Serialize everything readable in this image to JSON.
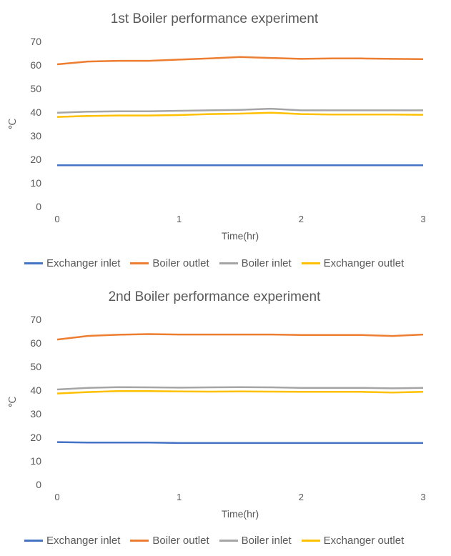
{
  "chart_data": [
    {
      "type": "line",
      "title": "1st Boiler performance experiment",
      "xlabel": "Time(hr)",
      "ylabel": "℃",
      "xlim": [
        0,
        3
      ],
      "ylim": [
        0,
        70
      ],
      "xticks": [
        "0",
        "1",
        "2",
        "3"
      ],
      "yticks": [
        "0",
        "10",
        "20",
        "30",
        "40",
        "50",
        "60",
        "70"
      ],
      "grid": false,
      "legend_position": "bottom",
      "x": [
        0,
        0.25,
        0.5,
        0.75,
        1.0,
        1.25,
        1.5,
        1.75,
        2.0,
        2.25,
        2.5,
        2.75,
        3.0
      ],
      "series": [
        {
          "name": "Exchanger inlet",
          "color": "#4472C4",
          "values": [
            17.5,
            17.5,
            17.5,
            17.5,
            17.5,
            17.5,
            17.5,
            17.5,
            17.5,
            17.5,
            17.5,
            17.5,
            17.5
          ]
        },
        {
          "name": "Boiler outlet",
          "color": "#ED7D31",
          "values": [
            60.3,
            61.5,
            61.8,
            61.8,
            62.3,
            62.8,
            63.4,
            63.0,
            62.6,
            62.8,
            62.8,
            62.6,
            62.5
          ]
        },
        {
          "name": "Boiler inlet",
          "color": "#A5A5A5",
          "values": [
            39.8,
            40.2,
            40.4,
            40.4,
            40.6,
            40.8,
            41.0,
            41.5,
            40.8,
            40.8,
            40.8,
            40.8,
            40.8
          ]
        },
        {
          "name": "Exchanger outlet",
          "color": "#FFC000",
          "values": [
            38.0,
            38.4,
            38.6,
            38.6,
            38.8,
            39.2,
            39.4,
            39.8,
            39.2,
            39.0,
            39.0,
            39.0,
            38.9
          ]
        }
      ]
    },
    {
      "type": "line",
      "title": "2nd Boiler performance experiment",
      "xlabel": "Time(hr)",
      "ylabel": "℃",
      "xlim": [
        0,
        3
      ],
      "ylim": [
        0,
        70
      ],
      "xticks": [
        "0",
        "1",
        "2",
        "3"
      ],
      "yticks": [
        "0",
        "10",
        "20",
        "30",
        "40",
        "50",
        "60",
        "70"
      ],
      "grid": false,
      "legend_position": "bottom",
      "x": [
        0,
        0.25,
        0.5,
        0.75,
        1.0,
        1.25,
        1.5,
        1.75,
        2.0,
        2.25,
        2.5,
        2.75,
        3.0
      ],
      "series": [
        {
          "name": "Exchanger inlet",
          "color": "#4472C4",
          "values": [
            18.0,
            17.8,
            17.8,
            17.8,
            17.6,
            17.6,
            17.6,
            17.6,
            17.6,
            17.6,
            17.6,
            17.6,
            17.6
          ]
        },
        {
          "name": "Boiler outlet",
          "color": "#ED7D31",
          "values": [
            61.5,
            63.0,
            63.5,
            63.8,
            63.6,
            63.6,
            63.6,
            63.6,
            63.4,
            63.4,
            63.4,
            63.0,
            63.6
          ]
        },
        {
          "name": "Boiler inlet",
          "color": "#A5A5A5",
          "values": [
            40.3,
            41.0,
            41.3,
            41.2,
            41.1,
            41.2,
            41.3,
            41.2,
            41.0,
            41.0,
            41.0,
            40.8,
            41.0
          ]
        },
        {
          "name": "Exchanger outlet",
          "color": "#FFC000",
          "values": [
            38.6,
            39.2,
            39.6,
            39.6,
            39.5,
            39.4,
            39.5,
            39.4,
            39.3,
            39.3,
            39.3,
            39.0,
            39.3
          ]
        }
      ]
    }
  ]
}
